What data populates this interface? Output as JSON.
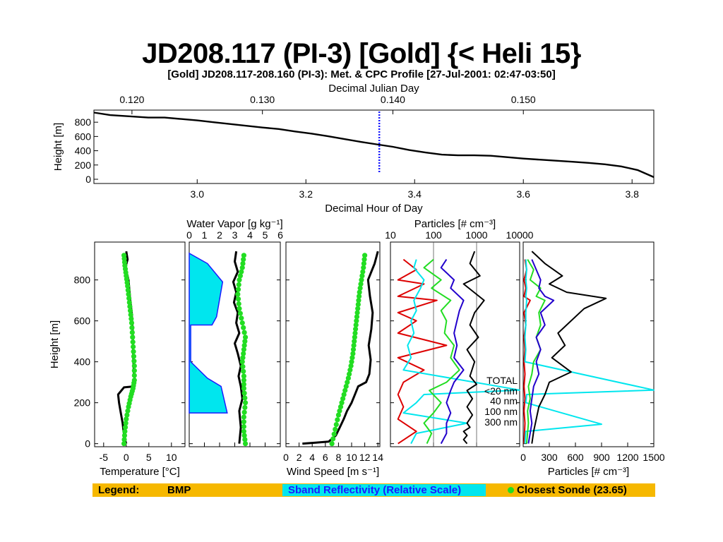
{
  "page": {
    "title": "JD208.117 (PI-3) [Gold] {< Heli 15}"
  },
  "figure": {
    "header": "[Gold] JD208.117-208.160 (PI-3): Met. & CPC Profile [27-Jul-2001: 02:47-03:50]"
  },
  "legend": {
    "label": "Legend:",
    "bmp": "BMP",
    "sband": "Sband Reflectivity (Relative Scale)",
    "sonde": "Closest Sonde (23.65)",
    "colors": {
      "bar": "#f6b800",
      "sband": "#00e6ee",
      "sonde": "#22dd22"
    }
  },
  "particle_legend": {
    "total": "TOTAL",
    "lt20": "<20 nm",
    "n40": "40 nm",
    "n100": "100 nm",
    "n300": "300 nm",
    "colors": {
      "total": "#000000",
      "lt20": "#dd0000",
      "n40": "#22dd22",
      "n100": "#2200cc",
      "n300": "#00e6ee"
    }
  },
  "chart_data": [
    {
      "type": "line",
      "id": "time-height",
      "xlabel": "Decimal Hour of Day",
      "xlim": [
        2.81,
        3.84
      ],
      "xticks": [
        "3.0",
        "3.2",
        "3.4",
        "3.6",
        "3.8"
      ],
      "top_axis_label": "Decimal Julian Day",
      "top_ticks": [
        "0.120",
        "0.130",
        "0.140",
        "0.150"
      ],
      "ylabel": "Height [m]",
      "ylim": [
        0,
        950
      ],
      "yticks": [
        "0",
        "200",
        "400",
        "600",
        "800"
      ],
      "marker_hour": 3.335,
      "series": [
        {
          "x": [
            2.81,
            2.84,
            2.88,
            2.91,
            2.94,
            2.97,
            3.0,
            3.03,
            3.06,
            3.09,
            3.12,
            3.15,
            3.18,
            3.21,
            3.24,
            3.27,
            3.3,
            3.33,
            3.36,
            3.39,
            3.42,
            3.45,
            3.48,
            3.51,
            3.54,
            3.57,
            3.6,
            3.63,
            3.66,
            3.69,
            3.72,
            3.75,
            3.78,
            3.81,
            3.84
          ],
          "y": [
            935,
            900,
            880,
            865,
            865,
            845,
            825,
            800,
            775,
            750,
            725,
            705,
            670,
            640,
            605,
            565,
            525,
            490,
            455,
            410,
            375,
            345,
            335,
            335,
            330,
            310,
            290,
            275,
            260,
            245,
            230,
            210,
            180,
            130,
            30
          ]
        }
      ]
    },
    {
      "type": "line",
      "id": "temperature",
      "xlabel": "Temperature [°C]",
      "xlim": [
        -7,
        13
      ],
      "xticks": [
        "-5",
        "0",
        "5",
        "10"
      ],
      "ylabel": "Height [m]",
      "ylim": [
        -15,
        985
      ],
      "yticks": [
        "0",
        "200",
        "400",
        "600",
        "800"
      ],
      "series": [
        {
          "name": "BMP",
          "x": [
            0,
            0.3,
            -0.2,
            0.5,
            0.8,
            1.2,
            1.4,
            1.5,
            1.6,
            1.7,
            2.0,
            1.8,
            -0.5,
            -1.8,
            -1.6,
            -1.2,
            -0.8,
            -0.6,
            -0.3,
            0
          ],
          "y": [
            940,
            900,
            860,
            800,
            720,
            640,
            560,
            480,
            400,
            340,
            300,
            280,
            275,
            240,
            200,
            150,
            100,
            60,
            20,
            0
          ]
        },
        {
          "name": "Closest Sonde",
          "x": [
            -0.5,
            -0.3,
            0,
            0.3,
            0.6,
            0.9,
            1.2,
            1.4,
            1.6,
            1.8,
            1.8,
            1.5,
            1.0,
            0.5,
            0,
            -0.3,
            -0.5
          ],
          "y": [
            920,
            870,
            820,
            770,
            710,
            650,
            590,
            520,
            450,
            380,
            310,
            270,
            230,
            180,
            120,
            60,
            0
          ]
        }
      ]
    },
    {
      "type": "line",
      "id": "water-vapor",
      "xlabel": "Water Vapor [g kg⁻¹]",
      "xlim": [
        0,
        6
      ],
      "xticks": [
        "0",
        "1",
        "2",
        "3",
        "4",
        "5",
        "6"
      ],
      "ylim": [
        -15,
        985
      ],
      "series": [
        {
          "name": "Sband Reflectivity",
          "x": [
            0,
            1.2,
            2.2,
            1.8,
            1.5,
            0.1,
            0.1,
            1.2,
            2.1,
            2.5,
            0
          ],
          "y": [
            930,
            880,
            790,
            620,
            580,
            580,
            400,
            320,
            280,
            150,
            150
          ]
        },
        {
          "name": "BMP",
          "x": [
            3.1,
            3.0,
            3.2,
            2.9,
            3.1,
            2.95,
            3.2,
            3.1,
            3.3,
            3.0,
            3.2,
            3.4,
            3.25,
            3.4,
            3.5,
            3.3,
            3.4,
            3.3
          ],
          "y": [
            940,
            890,
            840,
            790,
            740,
            690,
            640,
            590,
            540,
            490,
            440,
            380,
            330,
            280,
            220,
            160,
            80,
            0
          ]
        },
        {
          "name": "Closest Sonde",
          "x": [
            3.6,
            3.5,
            3.3,
            3.2,
            3.3,
            3.5,
            3.7,
            3.6,
            3.5,
            3.6,
            3.6,
            3.7,
            3.6,
            3.6,
            3.7
          ],
          "y": [
            920,
            860,
            800,
            730,
            660,
            590,
            520,
            460,
            400,
            330,
            270,
            200,
            130,
            60,
            0
          ]
        }
      ]
    },
    {
      "type": "line",
      "id": "wind-speed",
      "xlabel": "Wind Speed [m s⁻¹]",
      "xlim": [
        0,
        14.3
      ],
      "xticks": [
        "0",
        "2",
        "4",
        "6",
        "8",
        "10",
        "12",
        "14"
      ],
      "ylim": [
        -15,
        985
      ],
      "series": [
        {
          "name": "BMP",
          "x": [
            14,
            13.5,
            12.5,
            12.8,
            13.2,
            13.0,
            12.6,
            12.9,
            12.7,
            12.2,
            11.0,
            10.5,
            10.0,
            9.3,
            8.8,
            8.2,
            7.6,
            6.5,
            4.5,
            2.5
          ],
          "y": [
            940,
            880,
            800,
            720,
            640,
            560,
            480,
            410,
            340,
            300,
            280,
            240,
            200,
            160,
            120,
            80,
            40,
            10,
            5,
            0
          ]
        },
        {
          "name": "Closest Sonde",
          "x": [
            12.0,
            11.8,
            11.5,
            11.2,
            11.0,
            10.8,
            10.6,
            10.4,
            10.2,
            9.9,
            9.5,
            9.0,
            8.5,
            8.0,
            7.5,
            7.0
          ],
          "y": [
            920,
            860,
            800,
            740,
            680,
            620,
            560,
            500,
            440,
            380,
            320,
            260,
            200,
            140,
            70,
            0
          ]
        }
      ]
    },
    {
      "type": "line",
      "id": "particles-log",
      "top_axis_label": "Particles [# cm⁻³]",
      "xscale": "log",
      "xlim": [
        10,
        10000
      ],
      "xticks": [
        "10",
        "100",
        "1000",
        "10000"
      ],
      "ylim": [
        -15,
        985
      ],
      "series": [
        {
          "name": "TOTAL",
          "x": [
            900,
            700,
            1200,
            500,
            1500,
            900,
            700,
            1100,
            600,
            900,
            700,
            1000,
            600,
            800,
            600,
            800,
            600,
            700,
            500,
            600,
            500,
            600
          ],
          "y": [
            940,
            880,
            820,
            780,
            700,
            640,
            580,
            520,
            460,
            400,
            330,
            290,
            260,
            220,
            180,
            140,
            100,
            80,
            60,
            40,
            20,
            0
          ]
        },
        {
          "name": "<20 nm",
          "x": [
            20,
            40,
            15,
            60,
            15,
            120,
            15,
            40,
            15,
            200,
            15,
            60,
            20,
            15,
            20,
            15,
            40,
            15
          ],
          "y": [
            900,
            850,
            800,
            780,
            720,
            700,
            640,
            600,
            540,
            480,
            420,
            360,
            300,
            240,
            180,
            120,
            60,
            0
          ]
        },
        {
          "name": "40 nm",
          "x": [
            100,
            60,
            150,
            90,
            250,
            150,
            200,
            180,
            300,
            250,
            400,
            200,
            80,
            150,
            100,
            60,
            90,
            70
          ],
          "y": [
            900,
            860,
            800,
            760,
            700,
            650,
            600,
            540,
            480,
            420,
            360,
            300,
            260,
            200,
            150,
            100,
            50,
            0
          ]
        },
        {
          "name": "100 nm",
          "x": [
            200,
            150,
            300,
            250,
            500,
            400,
            350,
            300,
            350,
            300,
            500,
            300,
            250,
            200,
            250,
            200,
            200,
            150
          ],
          "y": [
            900,
            860,
            800,
            760,
            700,
            650,
            600,
            540,
            480,
            420,
            360,
            300,
            260,
            200,
            150,
            100,
            50,
            0
          ]
        },
        {
          "name": "300 nm",
          "x": [
            40,
            35,
            60,
            50,
            35,
            40,
            30,
            35,
            25,
            30,
            20,
            10000,
            60,
            40,
            20,
            600,
            40,
            30
          ],
          "y": [
            900,
            860,
            800,
            760,
            700,
            650,
            600,
            540,
            480,
            420,
            360,
            262,
            240,
            200,
            150,
            100,
            50,
            0
          ]
        }
      ]
    },
    {
      "type": "line",
      "id": "particles-linear",
      "xlabel": "Particles [# cm⁻³]",
      "xlim": [
        0,
        1500
      ],
      "xticks": [
        "0",
        "300",
        "600",
        "900",
        "1200",
        "1500"
      ],
      "ylim": [
        -15,
        985
      ],
      "series": [
        {
          "name": "TOTAL",
          "x": [
            100,
            250,
            450,
            300,
            500,
            950,
            700,
            550,
            400,
            480,
            330,
            550,
            300,
            250,
            180,
            150,
            120,
            100
          ],
          "y": [
            940,
            880,
            820,
            780,
            740,
            710,
            660,
            600,
            540,
            480,
            420,
            350,
            300,
            240,
            180,
            120,
            60,
            0
          ]
        },
        {
          "name": "<20 nm",
          "x": [
            20,
            40,
            10,
            30,
            10,
            80,
            10,
            30,
            10,
            20,
            10,
            20,
            10,
            20,
            10,
            20,
            10
          ],
          "y": [
            900,
            850,
            800,
            760,
            720,
            700,
            640,
            580,
            520,
            460,
            400,
            340,
            280,
            220,
            160,
            100,
            0
          ]
        },
        {
          "name": "40 nm",
          "x": [
            50,
            120,
            80,
            200,
            150,
            250,
            180,
            200,
            150,
            200,
            120,
            100,
            60,
            80,
            50,
            60,
            40
          ],
          "y": [
            900,
            850,
            800,
            760,
            720,
            700,
            640,
            580,
            520,
            460,
            400,
            340,
            280,
            220,
            160,
            100,
            0
          ]
        },
        {
          "name": "100 nm",
          "x": [
            100,
            150,
            200,
            180,
            250,
            350,
            200,
            250,
            150,
            200,
            150,
            180,
            120,
            100,
            80,
            100,
            60
          ],
          "y": [
            900,
            850,
            800,
            760,
            720,
            700,
            640,
            580,
            520,
            460,
            400,
            340,
            280,
            220,
            160,
            100,
            0
          ]
        },
        {
          "name": "300 nm",
          "x": [
            30,
            40,
            30,
            40,
            30,
            40,
            30,
            30,
            20,
            30,
            20,
            1500,
            40,
            30,
            900,
            30,
            20
          ],
          "y": [
            900,
            850,
            800,
            760,
            720,
            700,
            640,
            580,
            520,
            460,
            400,
            262,
            240,
            200,
            95,
            60,
            0
          ]
        }
      ]
    }
  ]
}
